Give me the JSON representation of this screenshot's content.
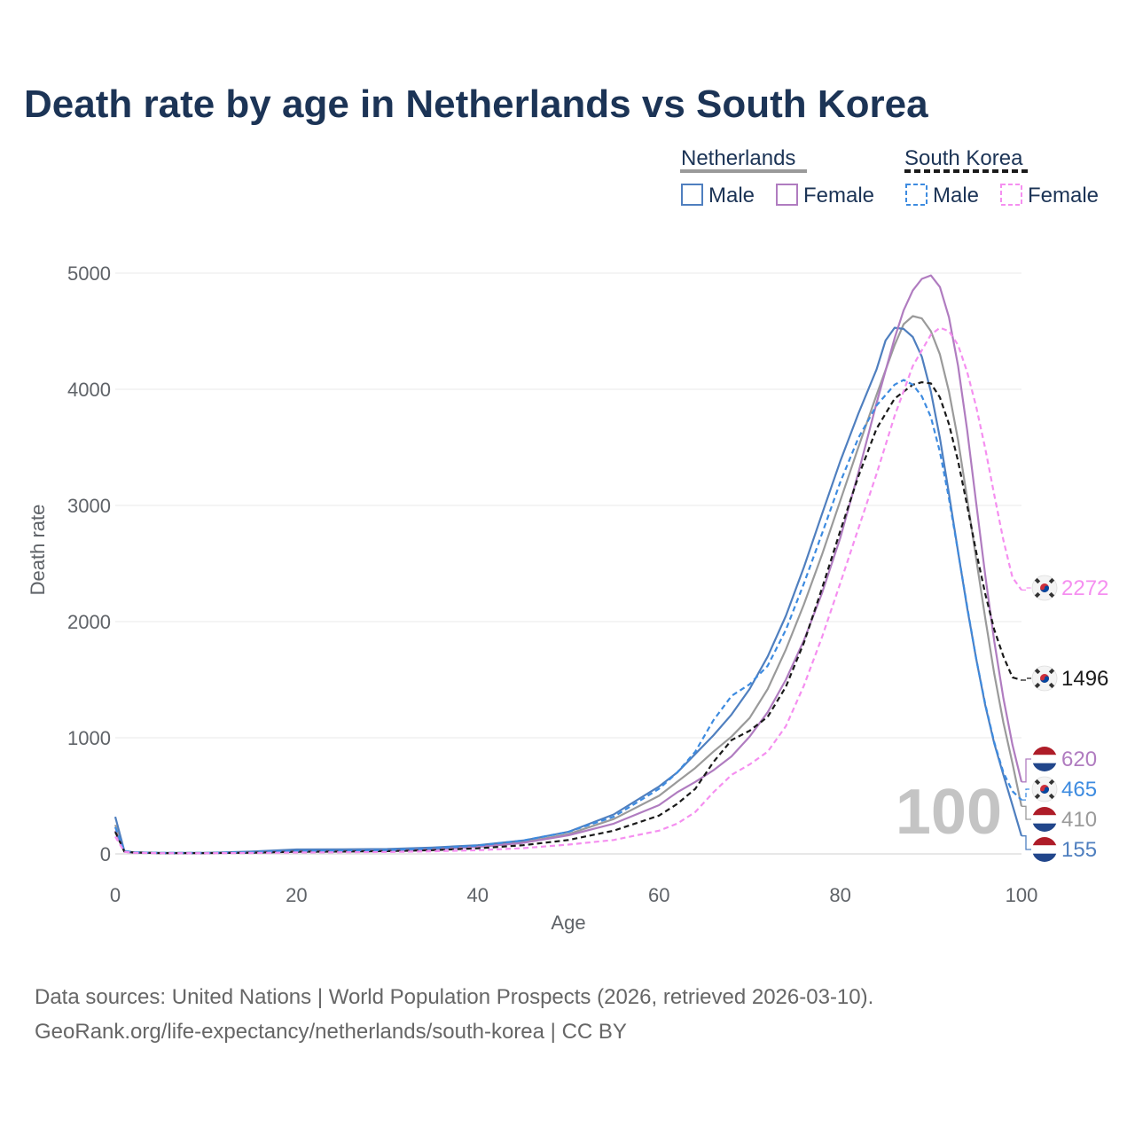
{
  "title": "Death rate by age in Netherlands vs South Korea",
  "legend": {
    "group1": "Netherlands",
    "group2": "South Korea",
    "male": "Male",
    "female": "Female"
  },
  "source_line1": "Data sources: United Nations | World Population Prospects (2026, retrieved 2026-03-10).",
  "source_line2": "GeoRank.org/life-expectancy/netherlands/south-korea | CC BY",
  "watermark": "100",
  "colors": {
    "nl_male": "#4f7fbf",
    "nl_female": "#b07cc0",
    "nl_total": "#9a9a9a",
    "kr_male": "#3d8be0",
    "kr_female": "#f58ff0",
    "kr_total": "#1a1a1a"
  },
  "chart_data": {
    "type": "line",
    "xlabel": "Age",
    "ylabel": "Death rate",
    "xlim": [
      0,
      100
    ],
    "ylim": [
      0,
      5000
    ],
    "x_ticks": [
      0,
      20,
      40,
      60,
      80,
      100
    ],
    "y_ticks": [
      0,
      1000,
      2000,
      3000,
      4000,
      5000
    ],
    "grid": true,
    "series": [
      {
        "key": "nl_total",
        "name": "Netherlands",
        "dashed": false,
        "flag": "nl",
        "end_label": "410",
        "points": [
          [
            0,
            250
          ],
          [
            1,
            20
          ],
          [
            2,
            12
          ],
          [
            5,
            8
          ],
          [
            10,
            8
          ],
          [
            15,
            15
          ],
          [
            20,
            30
          ],
          [
            25,
            32
          ],
          [
            30,
            35
          ],
          [
            35,
            45
          ],
          [
            40,
            65
          ],
          [
            45,
            100
          ],
          [
            50,
            170
          ],
          [
            55,
            300
          ],
          [
            60,
            500
          ],
          [
            62,
            620
          ],
          [
            64,
            740
          ],
          [
            66,
            880
          ],
          [
            68,
            1010
          ],
          [
            70,
            1170
          ],
          [
            72,
            1420
          ],
          [
            74,
            1760
          ],
          [
            76,
            2150
          ],
          [
            78,
            2580
          ],
          [
            80,
            3040
          ],
          [
            82,
            3500
          ],
          [
            84,
            3950
          ],
          [
            86,
            4380
          ],
          [
            87,
            4560
          ],
          [
            88,
            4630
          ],
          [
            89,
            4610
          ],
          [
            90,
            4500
          ],
          [
            91,
            4300
          ],
          [
            92,
            3980
          ],
          [
            93,
            3560
          ],
          [
            94,
            3060
          ],
          [
            95,
            2540
          ],
          [
            96,
            2030
          ],
          [
            97,
            1550
          ],
          [
            98,
            1130
          ],
          [
            99,
            780
          ],
          [
            100,
            410
          ]
        ]
      },
      {
        "key": "nl_male",
        "name": "Netherlands Male",
        "dashed": false,
        "flag": "nl",
        "end_label": "155",
        "points": [
          [
            0,
            320
          ],
          [
            1,
            25
          ],
          [
            2,
            14
          ],
          [
            5,
            9
          ],
          [
            10,
            9
          ],
          [
            15,
            20
          ],
          [
            20,
            38
          ],
          [
            25,
            40
          ],
          [
            30,
            42
          ],
          [
            35,
            55
          ],
          [
            40,
            75
          ],
          [
            45,
            115
          ],
          [
            50,
            190
          ],
          [
            55,
            340
          ],
          [
            60,
            580
          ],
          [
            62,
            700
          ],
          [
            64,
            860
          ],
          [
            66,
            1020
          ],
          [
            68,
            1200
          ],
          [
            70,
            1420
          ],
          [
            72,
            1700
          ],
          [
            74,
            2050
          ],
          [
            76,
            2470
          ],
          [
            78,
            2930
          ],
          [
            80,
            3380
          ],
          [
            82,
            3790
          ],
          [
            84,
            4170
          ],
          [
            85,
            4420
          ],
          [
            86,
            4530
          ],
          [
            87,
            4520
          ],
          [
            88,
            4450
          ],
          [
            89,
            4280
          ],
          [
            90,
            3980
          ],
          [
            91,
            3580
          ],
          [
            92,
            3100
          ],
          [
            93,
            2600
          ],
          [
            94,
            2120
          ],
          [
            95,
            1680
          ],
          [
            96,
            1280
          ],
          [
            97,
            950
          ],
          [
            98,
            680
          ],
          [
            99,
            420
          ],
          [
            100,
            155
          ]
        ]
      },
      {
        "key": "nl_female",
        "name": "Netherlands Female",
        "dashed": false,
        "flag": "nl",
        "end_label": "620",
        "points": [
          [
            0,
            200
          ],
          [
            1,
            18
          ],
          [
            2,
            10
          ],
          [
            5,
            7
          ],
          [
            10,
            7
          ],
          [
            15,
            12
          ],
          [
            20,
            20
          ],
          [
            25,
            22
          ],
          [
            30,
            26
          ],
          [
            35,
            38
          ],
          [
            40,
            60
          ],
          [
            45,
            95
          ],
          [
            50,
            160
          ],
          [
            55,
            260
          ],
          [
            60,
            420
          ],
          [
            62,
            530
          ],
          [
            64,
            620
          ],
          [
            66,
            720
          ],
          [
            68,
            840
          ],
          [
            70,
            1010
          ],
          [
            72,
            1220
          ],
          [
            74,
            1500
          ],
          [
            76,
            1840
          ],
          [
            78,
            2250
          ],
          [
            80,
            2720
          ],
          [
            82,
            3280
          ],
          [
            84,
            3880
          ],
          [
            86,
            4440
          ],
          [
            87,
            4680
          ],
          [
            88,
            4850
          ],
          [
            89,
            4950
          ],
          [
            90,
            4980
          ],
          [
            91,
            4880
          ],
          [
            92,
            4620
          ],
          [
            93,
            4200
          ],
          [
            94,
            3650
          ],
          [
            95,
            3020
          ],
          [
            96,
            2400
          ],
          [
            97,
            1830
          ],
          [
            98,
            1340
          ],
          [
            99,
            940
          ],
          [
            100,
            620
          ]
        ]
      },
      {
        "key": "kr_total",
        "name": "South Korea",
        "dashed": true,
        "flag": "kr",
        "end_label": "1496",
        "points": [
          [
            0,
            190
          ],
          [
            1,
            22
          ],
          [
            2,
            12
          ],
          [
            5,
            7
          ],
          [
            10,
            7
          ],
          [
            15,
            10
          ],
          [
            20,
            18
          ],
          [
            25,
            20
          ],
          [
            30,
            24
          ],
          [
            35,
            32
          ],
          [
            40,
            48
          ],
          [
            45,
            75
          ],
          [
            50,
            120
          ],
          [
            55,
            200
          ],
          [
            60,
            330
          ],
          [
            62,
            430
          ],
          [
            64,
            560
          ],
          [
            66,
            790
          ],
          [
            68,
            980
          ],
          [
            70,
            1060
          ],
          [
            72,
            1180
          ],
          [
            74,
            1440
          ],
          [
            76,
            1820
          ],
          [
            78,
            2290
          ],
          [
            80,
            2780
          ],
          [
            82,
            3250
          ],
          [
            84,
            3660
          ],
          [
            86,
            3920
          ],
          [
            88,
            4040
          ],
          [
            89,
            4060
          ],
          [
            90,
            4050
          ],
          [
            91,
            3930
          ],
          [
            92,
            3700
          ],
          [
            93,
            3380
          ],
          [
            94,
            3000
          ],
          [
            95,
            2600
          ],
          [
            96,
            2240
          ],
          [
            97,
            1930
          ],
          [
            98,
            1700
          ],
          [
            99,
            1520
          ],
          [
            100,
            1496
          ]
        ]
      },
      {
        "key": "kr_male",
        "name": "South Korea Male",
        "dashed": true,
        "flag": "kr",
        "end_label": "465",
        "points": [
          [
            0,
            230
          ],
          [
            1,
            25
          ],
          [
            2,
            14
          ],
          [
            5,
            8
          ],
          [
            10,
            8
          ],
          [
            15,
            14
          ],
          [
            20,
            25
          ],
          [
            25,
            28
          ],
          [
            30,
            33
          ],
          [
            35,
            48
          ],
          [
            40,
            72
          ],
          [
            45,
            115
          ],
          [
            50,
            190
          ],
          [
            55,
            320
          ],
          [
            60,
            560
          ],
          [
            62,
            700
          ],
          [
            64,
            880
          ],
          [
            66,
            1150
          ],
          [
            68,
            1360
          ],
          [
            70,
            1460
          ],
          [
            72,
            1620
          ],
          [
            74,
            1930
          ],
          [
            76,
            2330
          ],
          [
            78,
            2760
          ],
          [
            80,
            3200
          ],
          [
            82,
            3580
          ],
          [
            84,
            3860
          ],
          [
            86,
            4040
          ],
          [
            87,
            4080
          ],
          [
            88,
            4040
          ],
          [
            89,
            3940
          ],
          [
            90,
            3760
          ],
          [
            91,
            3460
          ],
          [
            92,
            3060
          ],
          [
            93,
            2600
          ],
          [
            94,
            2130
          ],
          [
            95,
            1680
          ],
          [
            96,
            1290
          ],
          [
            97,
            960
          ],
          [
            98,
            700
          ],
          [
            99,
            540
          ],
          [
            100,
            465
          ]
        ]
      },
      {
        "key": "kr_female",
        "name": "South Korea Female",
        "dashed": true,
        "flag": "kr",
        "end_label": "2272",
        "points": [
          [
            0,
            150
          ],
          [
            1,
            18
          ],
          [
            2,
            10
          ],
          [
            5,
            6
          ],
          [
            10,
            6
          ],
          [
            15,
            8
          ],
          [
            20,
            12
          ],
          [
            25,
            14
          ],
          [
            30,
            16
          ],
          [
            35,
            22
          ],
          [
            40,
            32
          ],
          [
            45,
            50
          ],
          [
            50,
            80
          ],
          [
            55,
            120
          ],
          [
            60,
            200
          ],
          [
            62,
            260
          ],
          [
            64,
            360
          ],
          [
            66,
            530
          ],
          [
            68,
            680
          ],
          [
            70,
            770
          ],
          [
            72,
            880
          ],
          [
            74,
            1100
          ],
          [
            76,
            1450
          ],
          [
            78,
            1870
          ],
          [
            80,
            2330
          ],
          [
            82,
            2800
          ],
          [
            84,
            3270
          ],
          [
            86,
            3770
          ],
          [
            88,
            4200
          ],
          [
            90,
            4470
          ],
          [
            91,
            4530
          ],
          [
            92,
            4500
          ],
          [
            93,
            4380
          ],
          [
            94,
            4150
          ],
          [
            95,
            3850
          ],
          [
            96,
            3490
          ],
          [
            97,
            3090
          ],
          [
            98,
            2700
          ],
          [
            99,
            2380
          ],
          [
            100,
            2272
          ]
        ]
      }
    ]
  }
}
